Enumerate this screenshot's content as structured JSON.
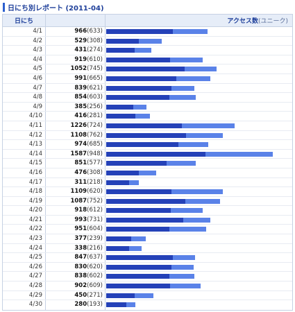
{
  "report": {
    "title": "日にち別レポート (2011-04)",
    "header": {
      "day_label": "日にち",
      "access_label": "アクセス数",
      "access_sub": "(ユニーク)"
    },
    "max_value": 1587,
    "rows": [
      {
        "day": "4/1",
        "pv": 966,
        "uu": 633
      },
      {
        "day": "4/2",
        "pv": 529,
        "uu": 308
      },
      {
        "day": "4/3",
        "pv": 431,
        "uu": 274
      },
      {
        "day": "4/4",
        "pv": 919,
        "uu": 610
      },
      {
        "day": "4/5",
        "pv": 1052,
        "uu": 745
      },
      {
        "day": "4/6",
        "pv": 991,
        "uu": 665
      },
      {
        "day": "4/7",
        "pv": 839,
        "uu": 621
      },
      {
        "day": "4/8",
        "pv": 854,
        "uu": 603
      },
      {
        "day": "4/9",
        "pv": 385,
        "uu": 256
      },
      {
        "day": "4/10",
        "pv": 416,
        "uu": 281
      },
      {
        "day": "4/11",
        "pv": 1226,
        "uu": 724
      },
      {
        "day": "4/12",
        "pv": 1108,
        "uu": 762
      },
      {
        "day": "4/13",
        "pv": 974,
        "uu": 685
      },
      {
        "day": "4/14",
        "pv": 1587,
        "uu": 948
      },
      {
        "day": "4/15",
        "pv": 851,
        "uu": 577
      },
      {
        "day": "4/16",
        "pv": 476,
        "uu": 308
      },
      {
        "day": "4/17",
        "pv": 311,
        "uu": 218
      },
      {
        "day": "4/18",
        "pv": 1109,
        "uu": 620
      },
      {
        "day": "4/19",
        "pv": 1087,
        "uu": 752
      },
      {
        "day": "4/20",
        "pv": 918,
        "uu": 612
      },
      {
        "day": "4/21",
        "pv": 993,
        "uu": 731
      },
      {
        "day": "4/22",
        "pv": 951,
        "uu": 604
      },
      {
        "day": "4/23",
        "pv": 377,
        "uu": 239
      },
      {
        "day": "4/24",
        "pv": 338,
        "uu": 216
      },
      {
        "day": "4/25",
        "pv": 847,
        "uu": 637
      },
      {
        "day": "4/26",
        "pv": 830,
        "uu": 620
      },
      {
        "day": "4/27",
        "pv": 838,
        "uu": 602
      },
      {
        "day": "4/28",
        "pv": 902,
        "uu": 609
      },
      {
        "day": "4/29",
        "pv": 450,
        "uu": 271
      },
      {
        "day": "4/30",
        "pv": 280,
        "uu": 193
      }
    ]
  },
  "colors": {
    "bar_total": "#5a82e8",
    "bar_unique": "#2441b8",
    "header_bg": "#e6edf8",
    "title": "#1e3f9a"
  }
}
